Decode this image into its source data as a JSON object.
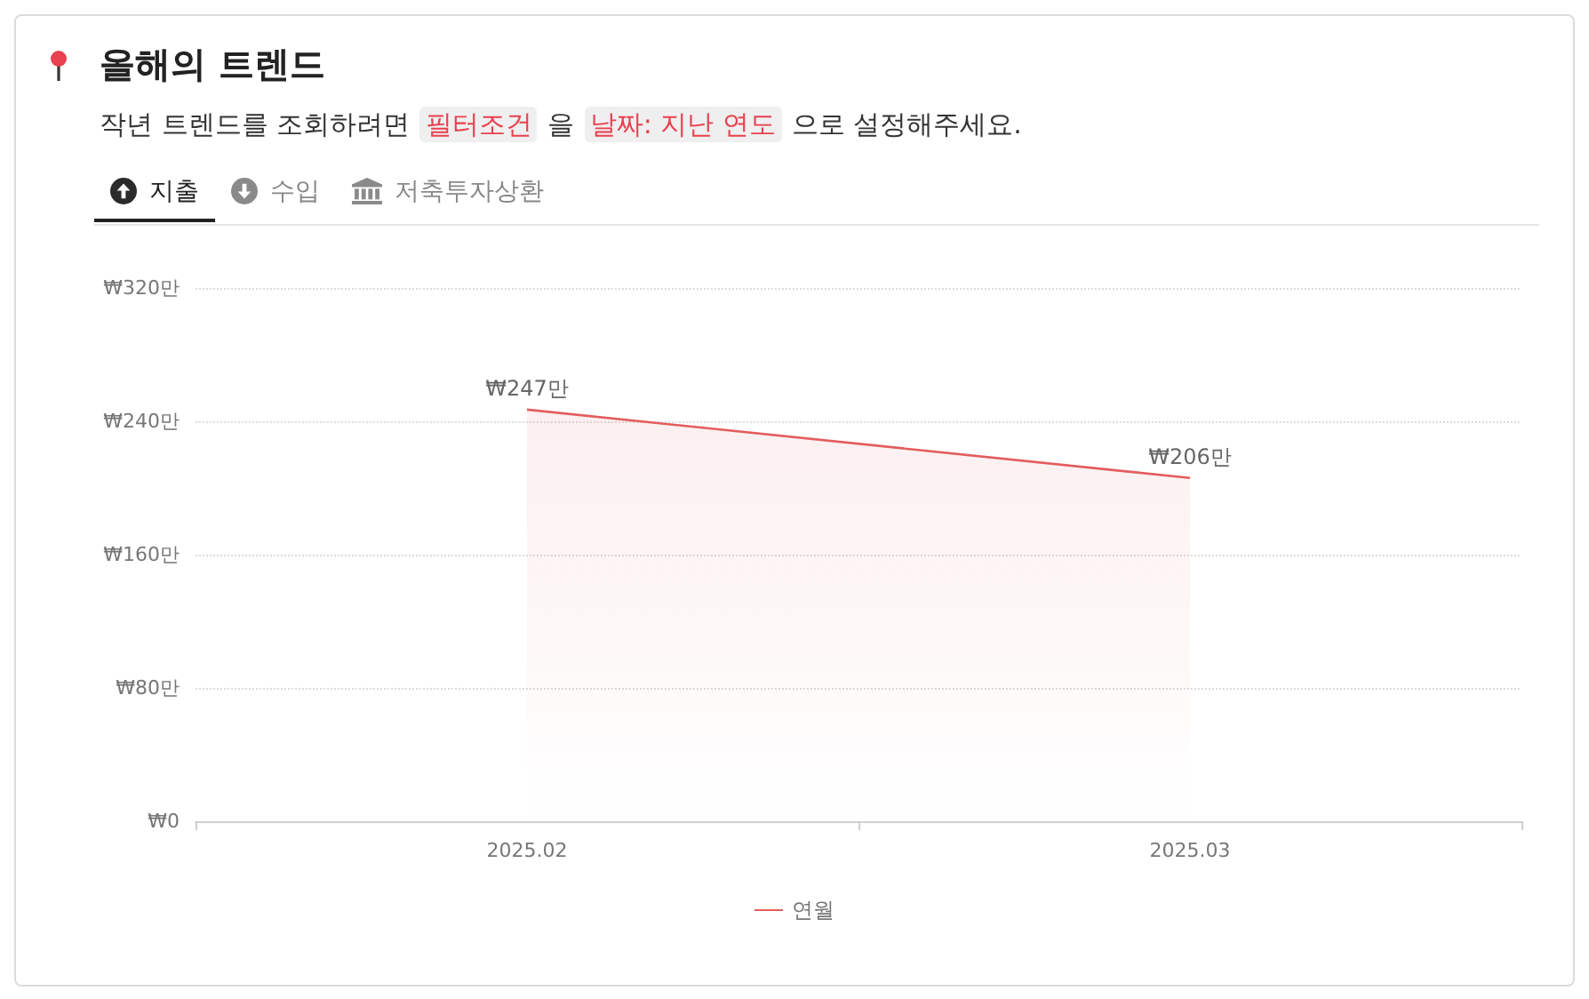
{
  "chart_data": {
    "type": "area",
    "title": "올해의 트렌드",
    "subtitle": "작년 트렌드를 조회하려면 필터조건 을 날짜: 지난 연도 으로 설정해주세요.",
    "annotations": [
      "지출",
      "수입",
      "저축투자상환"
    ],
    "categories": [
      "2025.02",
      "2025.03"
    ],
    "series": [
      {
        "name": "연월",
        "color": "#e35d5d",
        "values": [
          247,
          206
        ],
        "value_labels": [
          "₩247만",
          "₩206만"
        ]
      }
    ],
    "ylim": [
      0,
      320
    ],
    "yticks": [
      {
        "value": 0,
        "label": "₩0"
      },
      {
        "value": 80,
        "label": "₩80만"
      },
      {
        "value": 160,
        "label": "₩160만"
      },
      {
        "value": 240,
        "label": "₩240만"
      },
      {
        "value": 320,
        "label": "₩320만"
      }
    ],
    "grid": "y",
    "legend": "bottom",
    "marker": "none"
  }
}
